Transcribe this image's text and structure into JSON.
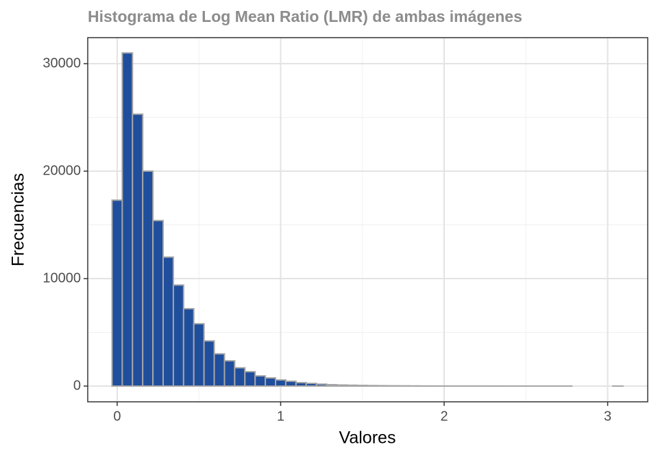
{
  "chart_data": {
    "type": "histogram",
    "title": "Histograma de Log Mean Ratio (LMR) de ambas imágenes",
    "xlabel": "Valores",
    "ylabel": "Frecuencias",
    "bins": [
      -0.03125,
      0.03125,
      0.09375,
      0.15625,
      0.21875,
      0.28125,
      0.34375,
      0.40625,
      0.46875,
      0.53125,
      0.59375,
      0.65625,
      0.71875,
      0.78125,
      0.84375,
      0.90625,
      0.96875,
      1.03125,
      1.09375,
      1.15625,
      1.21875,
      1.28125,
      1.34375,
      1.40625,
      1.46875,
      1.53125,
      1.59375,
      1.65625,
      1.71875,
      1.78125,
      1.84375,
      1.90625,
      1.96875,
      2.03125,
      2.09375,
      2.15625,
      2.21875,
      2.28125,
      2.34375,
      2.40625,
      2.46875,
      2.53125,
      2.59375,
      2.65625,
      2.71875,
      2.78125,
      2.84375,
      2.90625,
      2.96875,
      3.03125,
      3.09375
    ],
    "counts": [
      17300,
      31000,
      25300,
      20000,
      15400,
      12000,
      9400,
      7200,
      5800,
      4200,
      3000,
      2350,
      1700,
      1340,
      950,
      760,
      570,
      450,
      320,
      250,
      180,
      130,
      100,
      80,
      60,
      45,
      35,
      25,
      20,
      15,
      10,
      8,
      6,
      5,
      4,
      3,
      3,
      2,
      2,
      1,
      1,
      1,
      1,
      1,
      1,
      0,
      0,
      0,
      0,
      1
    ],
    "color": "#1f4e9c",
    "edgecolor": "#a6a6a6",
    "xlim": [
      -0.18,
      3.245
    ],
    "ylim": [
      -1465,
      32420
    ],
    "xticks": [
      0,
      1,
      2,
      3
    ],
    "yticks": [
      0,
      10000,
      20000,
      30000
    ],
    "grid": true
  }
}
